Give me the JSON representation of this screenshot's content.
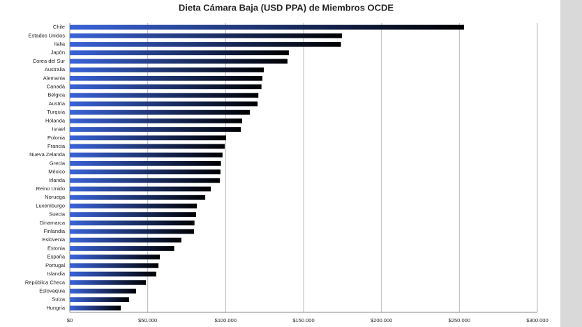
{
  "chart_data": {
    "type": "barh",
    "title": "Dieta Cámara Baja (USD PPA) de Miembros OCDE",
    "categories": [
      "Chile",
      "Estados Unidos",
      "Italia",
      "Japón",
      "Corea del Sur",
      "Australia",
      "Alemania",
      "Canadá",
      "Bélgica",
      "Austria",
      "Turquía",
      "Holanda",
      "Israel",
      "Polonia",
      "Francia",
      "Nueva Zelanda",
      "Grecia",
      "México",
      "Irlanda",
      "Reino Unido",
      "Noruega",
      "Luxemburgo",
      "Suecia",
      "Dinamarca",
      "Finlandia",
      "Eslovenia",
      "Estonia",
      "España",
      "Portugal",
      "Islandia",
      "República Checa",
      "Eslovaquia",
      "Suiza",
      "Hungría"
    ],
    "values": [
      253000,
      174600,
      174000,
      140600,
      139700,
      124500,
      123600,
      123000,
      121000,
      120500,
      115500,
      110600,
      109700,
      100300,
      99400,
      98000,
      97000,
      96700,
      96300,
      90500,
      86900,
      81500,
      81000,
      80000,
      79700,
      71600,
      67000,
      57800,
      56900,
      55500,
      48800,
      42500,
      38000,
      32700
    ],
    "color": "#3a63d8",
    "xlim": [
      0,
      300000
    ],
    "xticks": [
      {
        "value": 0,
        "label": "$0"
      },
      {
        "value": 50000,
        "label": "$50.000"
      },
      {
        "value": 100000,
        "label": "$100.000"
      },
      {
        "value": 150000,
        "label": "$150.000"
      },
      {
        "value": 200000,
        "label": "$200.000"
      },
      {
        "value": 250000,
        "label": "$250.000"
      },
      {
        "value": 300000,
        "label": "$300.000"
      }
    ],
    "grid": true
  }
}
